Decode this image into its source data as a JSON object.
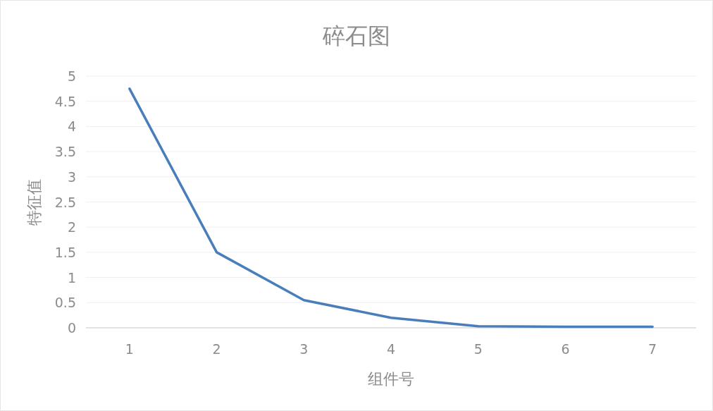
{
  "chart_data": {
    "type": "line",
    "title": "碎石图",
    "xlabel": "组件号",
    "ylabel": "特征值",
    "categories": [
      "1",
      "2",
      "3",
      "4",
      "5",
      "6",
      "7"
    ],
    "series": [
      {
        "color": "#4a7ebb",
        "values": [
          4.75,
          1.5,
          0.55,
          0.2,
          0.03,
          0.02,
          0.02
        ]
      }
    ],
    "ylim": [
      0,
      5
    ],
    "yticks": [
      0,
      0.5,
      1,
      1.5,
      2,
      2.5,
      3,
      3.5,
      4,
      4.5,
      5
    ],
    "grid": "y",
    "marker": "none",
    "line_style": "solid"
  }
}
